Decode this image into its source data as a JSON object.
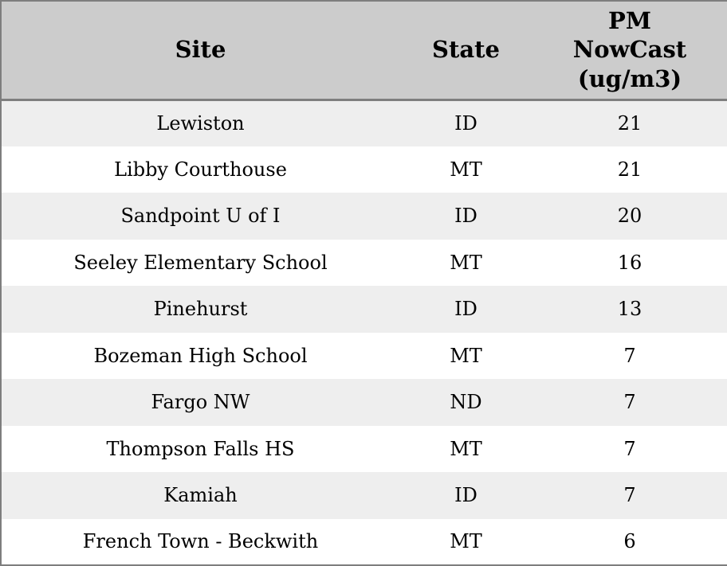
{
  "chart_data": {
    "type": "table",
    "title": "",
    "columns": [
      "Site",
      "State",
      "PM\nNowCast\n(ug/m3)"
    ],
    "rows": [
      [
        "Lewiston",
        "ID",
        21
      ],
      [
        "Libby Courthouse",
        "MT",
        21
      ],
      [
        "Sandpoint U of I",
        "ID",
        20
      ],
      [
        "Seeley Elementary School",
        "MT",
        16
      ],
      [
        "Pinehurst",
        "ID",
        13
      ],
      [
        "Bozeman High School",
        "MT",
        7
      ],
      [
        "Fargo NW",
        "ND",
        7
      ],
      [
        "Thompson Falls HS",
        "MT",
        7
      ],
      [
        "Kamiah",
        "ID",
        7
      ],
      [
        "French Town - Beckwith",
        "MT",
        6
      ]
    ],
    "layout": {
      "header_position": "top",
      "row_striping": "odd-rows-shaded",
      "text_align": "center"
    }
  },
  "colors": {
    "header_bg": "#cccccc",
    "row_shaded_bg": "#eeeeee",
    "row_plain_bg": "#ffffff",
    "border": "#7e7e7e",
    "text": "#000000"
  }
}
